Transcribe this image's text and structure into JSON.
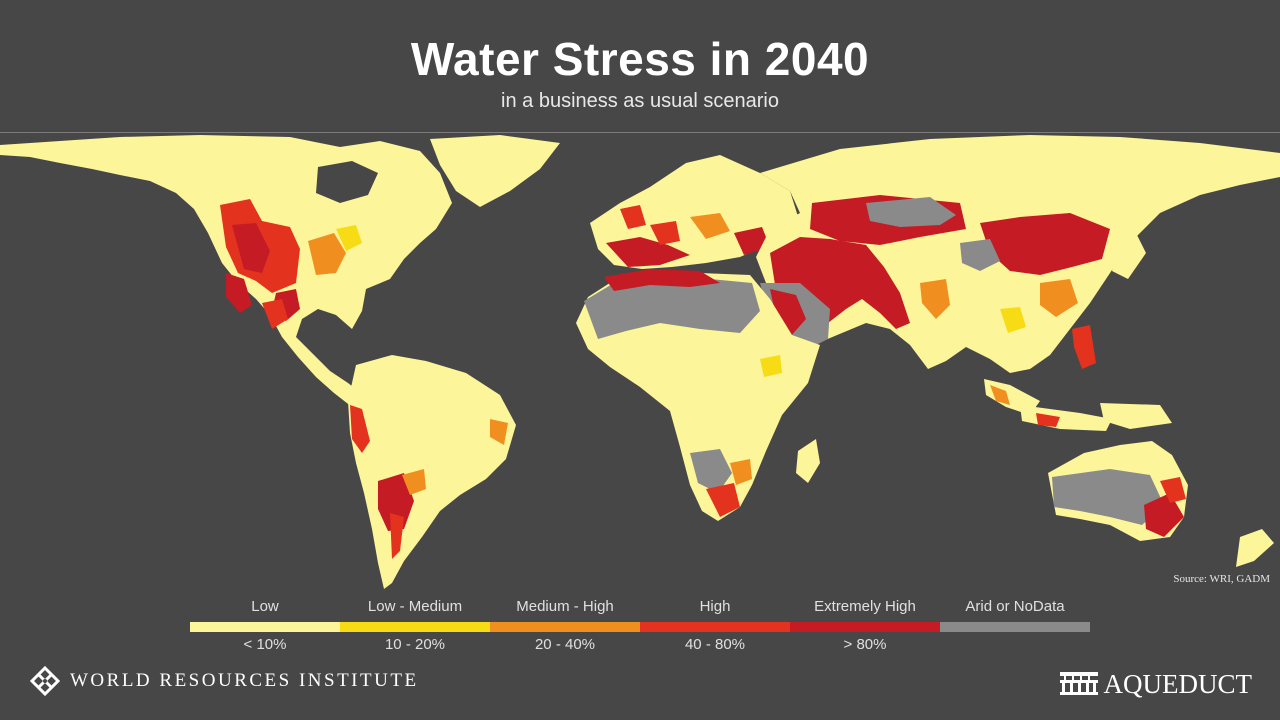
{
  "header": {
    "title": "Water Stress in 2040",
    "subtitle": "in a business as usual scenario"
  },
  "map": {
    "source": "Source: WRI, GADM"
  },
  "legend": [
    {
      "label": "Low",
      "range": "< 10%",
      "color": "#fcf59a"
    },
    {
      "label": "Low - Medium",
      "range": "10 - 20%",
      "color": "#f7dc15"
    },
    {
      "label": "Medium - High",
      "range": "20 - 40%",
      "color": "#f08f1f"
    },
    {
      "label": "High",
      "range": "40 - 80%",
      "color": "#e3321e"
    },
    {
      "label": "Extremely High",
      "range": "> 80%",
      "color": "#c41b24"
    },
    {
      "label": "Arid or NoData",
      "range": "",
      "color": "#8a8a8a"
    }
  ],
  "footer": {
    "wri_name": "WORLD RESOURCES INSTITUTE",
    "aqueduct_name": "AQUEDUCT"
  },
  "colors": {
    "background": "#474747",
    "land_low": "#fcf59a"
  }
}
